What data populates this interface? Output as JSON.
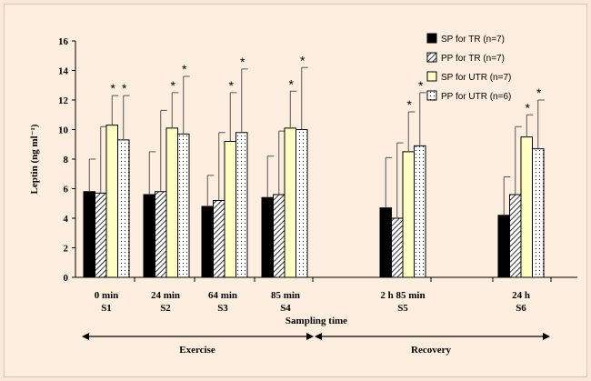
{
  "chart_data": {
    "type": "bar",
    "ylabel": "Leptin (ng ml⁻¹)",
    "xlabel": "Sampling time",
    "ylim": [
      0,
      16
    ],
    "yticks": [
      0,
      2,
      4,
      6,
      8,
      10,
      12,
      14,
      16
    ],
    "categories": [
      {
        "time": "0 min",
        "sample": "S1"
      },
      {
        "time": "24 min",
        "sample": "S2"
      },
      {
        "time": "64 min",
        "sample": "S3"
      },
      {
        "time": "85 min",
        "sample": "S4"
      },
      {
        "time": "2 h  85 min",
        "sample": "S5"
      },
      {
        "time": "24 h",
        "sample": "S6"
      }
    ],
    "series": [
      {
        "name": "SP for TR (n=7)",
        "pattern": "solid-black",
        "values": [
          5.8,
          5.6,
          4.8,
          5.4,
          4.7,
          4.2
        ],
        "errors": [
          2.2,
          2.9,
          2.1,
          2.8,
          3.4,
          2.6
        ],
        "significant": [
          false,
          false,
          false,
          false,
          false,
          false
        ]
      },
      {
        "name": "PP for TR (n=7)",
        "pattern": "diagonal-hatch",
        "values": [
          5.7,
          5.8,
          5.2,
          5.6,
          4.0,
          5.6
        ],
        "errors": [
          4.5,
          5.5,
          4.6,
          4.3,
          5.1,
          4.6
        ],
        "significant": [
          false,
          false,
          false,
          false,
          false,
          false
        ]
      },
      {
        "name": "SP for UTR (n=7)",
        "pattern": "light-yellow",
        "values": [
          10.3,
          10.1,
          9.2,
          10.1,
          8.5,
          9.5
        ],
        "errors": [
          2.0,
          2.4,
          3.3,
          2.5,
          2.7,
          1.5
        ],
        "significant": [
          true,
          true,
          true,
          true,
          true,
          true
        ]
      },
      {
        "name": "PP for UTR (n=6)",
        "pattern": "dotted",
        "values": [
          9.3,
          9.7,
          9.8,
          10.0,
          8.9,
          8.7
        ],
        "errors": [
          3.0,
          3.9,
          4.3,
          4.2,
          3.6,
          3.3
        ],
        "significant": [
          true,
          true,
          true,
          true,
          true,
          true
        ]
      }
    ],
    "significance_marker": "*",
    "phases": [
      {
        "label": "Exercise"
      },
      {
        "label": "Recovery"
      }
    ],
    "legend_position": "top-right"
  }
}
